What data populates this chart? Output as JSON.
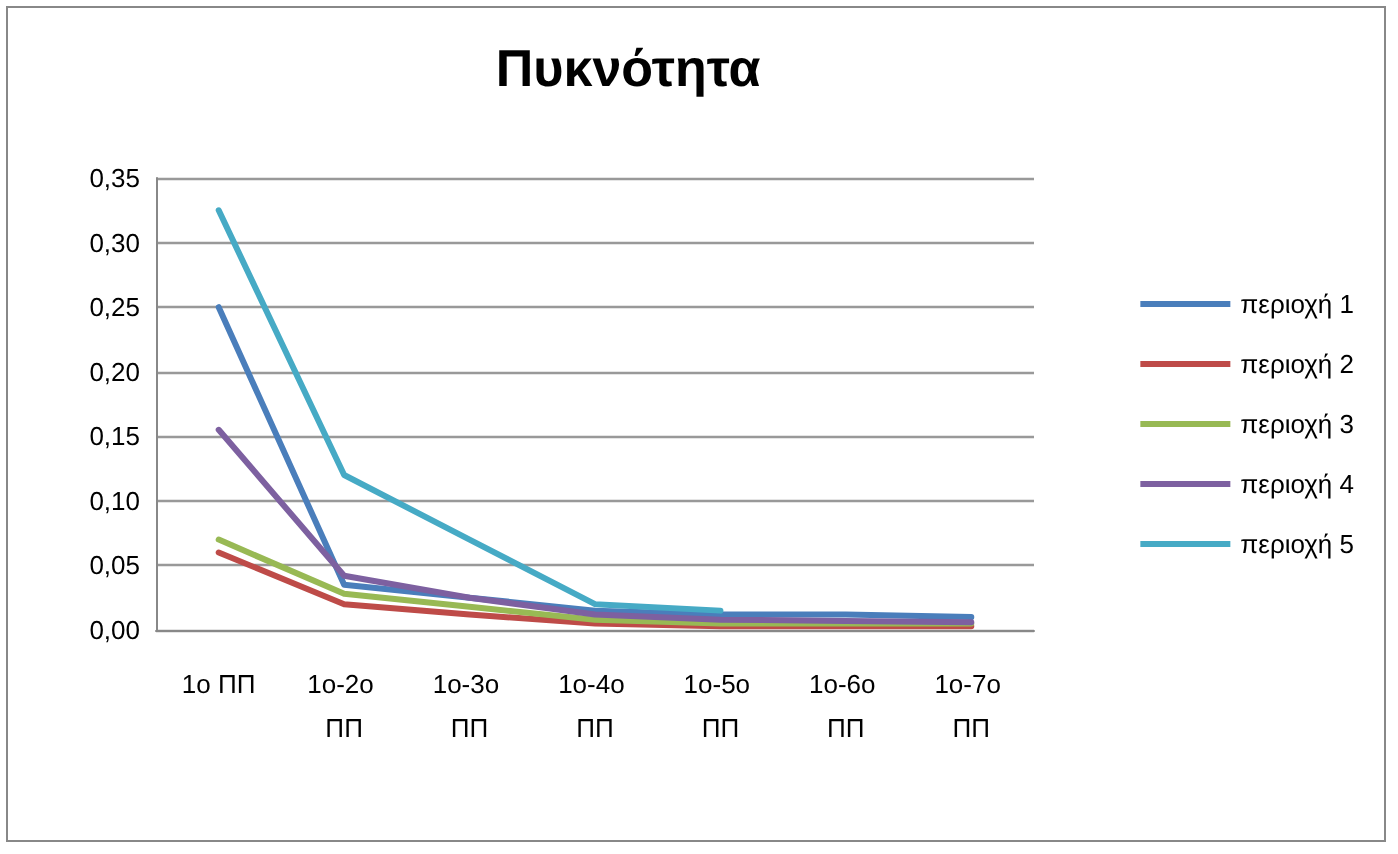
{
  "chart_data": {
    "type": "line",
    "title": "Πυκνότητα",
    "categories": [
      "1ο ΠΠ",
      "1ο-2ο ΠΠ",
      "1ο-3ο ΠΠ",
      "1ο-4ο ΠΠ",
      "1ο-5ο ΠΠ",
      "1ο-6ο ΠΠ",
      "1ο-7ο ΠΠ"
    ],
    "series": [
      {
        "name": "περιοχή 1",
        "color": "#4a7ebb",
        "values": [
          0.25,
          0.035,
          0.025,
          0.015,
          0.012,
          0.012,
          0.01
        ]
      },
      {
        "name": "περιοχή 2",
        "color": "#be4b48",
        "values": [
          0.06,
          0.02,
          0.012,
          0.005,
          0.003,
          0.003,
          0.003
        ]
      },
      {
        "name": "περιοχή 3",
        "color": "#98b954",
        "values": [
          0.07,
          0.028,
          0.018,
          0.008,
          0.005,
          0.005,
          0.005
        ]
      },
      {
        "name": "περιοχή 4",
        "color": "#7d60a0",
        "values": [
          0.155,
          0.042,
          0.025,
          0.012,
          0.008,
          0.007,
          0.006
        ]
      },
      {
        "name": "περιοχή 5",
        "color": "#46aac5",
        "values": [
          0.325,
          0.12,
          0.07,
          0.02,
          0.015,
          null,
          null
        ]
      }
    ],
    "ylim": [
      0,
      0.35
    ],
    "yticks": [
      {
        "value": 0,
        "label": "0,00"
      },
      {
        "value": 0.05,
        "label": "0,05"
      },
      {
        "value": 0.1,
        "label": "0,10"
      },
      {
        "value": 0.15,
        "label": "0,15"
      },
      {
        "value": 0.2,
        "label": "0,20"
      },
      {
        "value": 0.25,
        "label": "0,25"
      },
      {
        "value": 0.3,
        "label": "0,30"
      },
      {
        "value": 0.35,
        "label": "0,35"
      }
    ],
    "grid": "y",
    "legend": "right",
    "marker": "none",
    "line_style": "solid"
  }
}
